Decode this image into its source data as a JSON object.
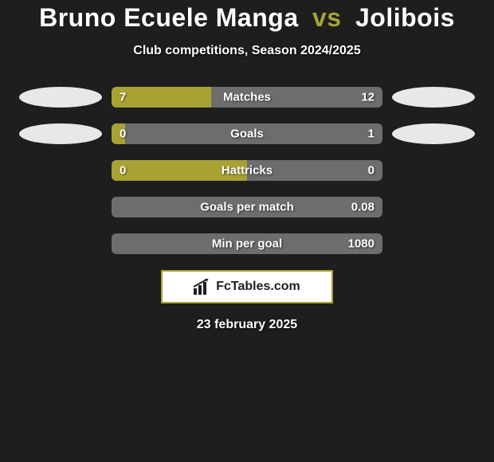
{
  "title": {
    "player1": "Bruno Ecuele Manga",
    "vs": "vs",
    "player2": "Jolibois"
  },
  "subtitle": "Club competitions, Season 2024/2025",
  "colors": {
    "left": "#a8a234",
    "right": "#6d6d6d",
    "oval_left": "#e8e8e8",
    "oval_right": "#e8e8e8",
    "background": "#1e1e1e",
    "accent": "#a8a234"
  },
  "rows": [
    {
      "label": "Matches",
      "left_value": "7",
      "right_value": "12",
      "left_pct": 36.8,
      "right_pct": 63.2,
      "show_ovals": true
    },
    {
      "label": "Goals",
      "left_value": "0",
      "right_value": "1",
      "left_pct": 5,
      "right_pct": 95,
      "show_ovals": true
    },
    {
      "label": "Hattricks",
      "left_value": "0",
      "right_value": "0",
      "left_pct": 50,
      "right_pct": 50,
      "show_ovals": false
    },
    {
      "label": "Goals per match",
      "left_value": "",
      "right_value": "0.08",
      "left_pct": 0,
      "right_pct": 100,
      "show_ovals": false
    },
    {
      "label": "Min per goal",
      "left_value": "",
      "right_value": "1080",
      "left_pct": 0,
      "right_pct": 100,
      "show_ovals": false
    }
  ],
  "branding": "FcTables.com",
  "date": "23 february 2025"
}
